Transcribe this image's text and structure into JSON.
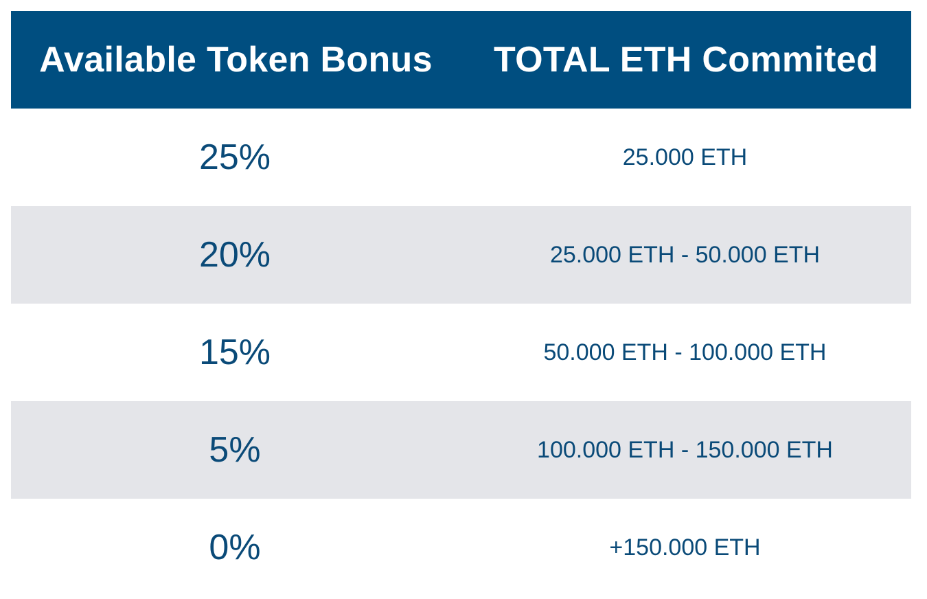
{
  "table": {
    "headers": [
      "Available Token Bonus",
      "TOTAL ETH Commited"
    ],
    "rows": [
      {
        "bonus": "25%",
        "eth": "25.000 ETH"
      },
      {
        "bonus": "20%",
        "eth": "25.000 ETH - 50.000 ETH"
      },
      {
        "bonus": "15%",
        "eth": "50.000 ETH - 100.000 ETH"
      },
      {
        "bonus": "5%",
        "eth": "100.000 ETH - 150.000 ETH"
      },
      {
        "bonus": "0%",
        "eth": "+150.000 ETH"
      }
    ]
  },
  "colors": {
    "header_bg": "#004e80",
    "header_text": "#ffffff",
    "body_text": "#0a4a78",
    "shaded_row_bg": "#e4e5e9",
    "plain_row_bg": "#ffffff"
  }
}
